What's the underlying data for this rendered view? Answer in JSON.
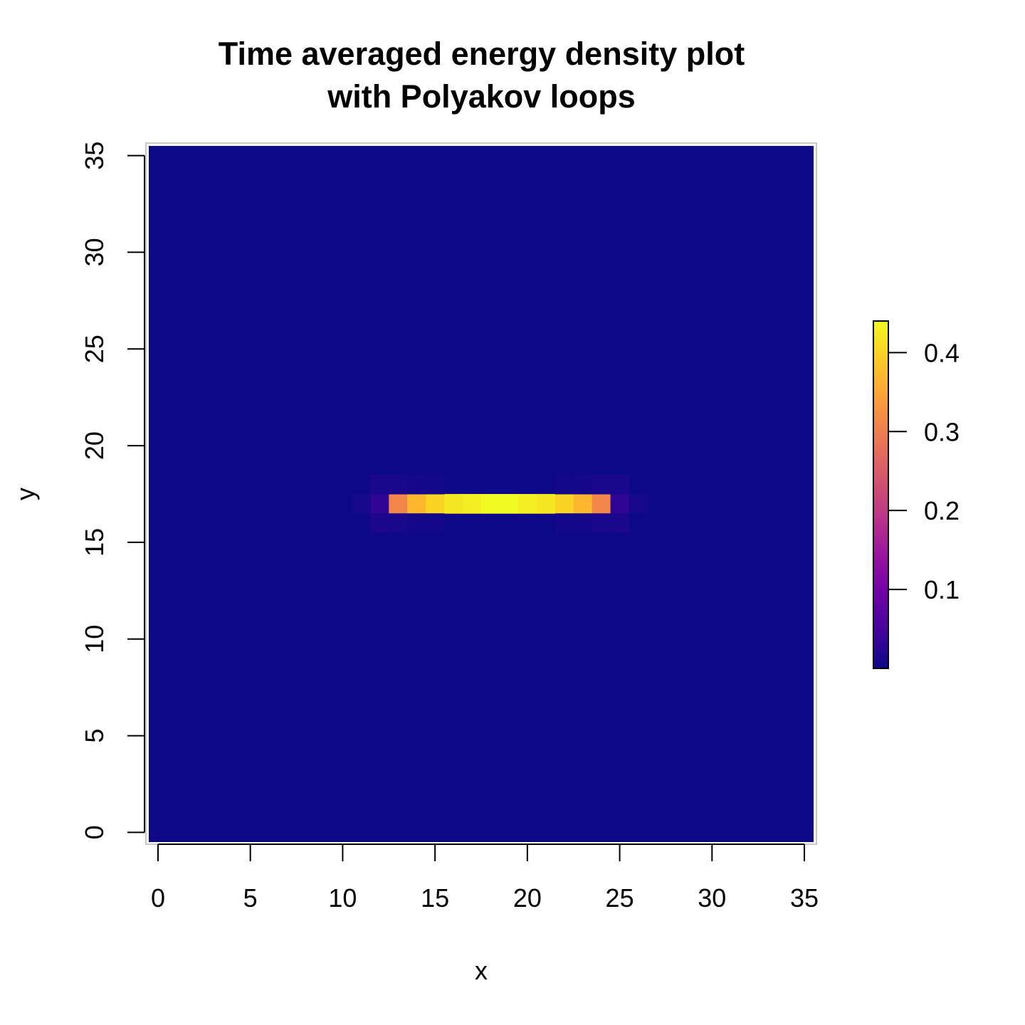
{
  "chart_data": {
    "type": "heatmap",
    "title_line1": "Time averaged energy density plot",
    "title_line2": "with Polyakov loops",
    "xlabel": "x",
    "ylabel": "y",
    "xlim": [
      -0.5,
      35.5
    ],
    "ylim": [
      -0.5,
      35.5
    ],
    "x_ticks": [
      0,
      5,
      10,
      15,
      20,
      25,
      30,
      35
    ],
    "y_ticks": [
      0,
      5,
      10,
      15,
      20,
      25,
      30,
      35
    ],
    "grid_size": 36,
    "background_value": 0.0,
    "colorbar": {
      "ticks": [
        0.1,
        0.2,
        0.3,
        0.4
      ],
      "min": 0.0,
      "max": 0.44,
      "palette": [
        "#0d0887",
        "#46039f",
        "#7201a8",
        "#9c179e",
        "#bd3786",
        "#d8576b",
        "#ed7953",
        "#fb9f3a",
        "#fdca26",
        "#f0f921"
      ]
    },
    "cells": [
      {
        "x": 12,
        "y": 17,
        "value": 0.03
      },
      {
        "x": 13,
        "y": 17,
        "value": 0.31
      },
      {
        "x": 14,
        "y": 17,
        "value": 0.37
      },
      {
        "x": 15,
        "y": 17,
        "value": 0.4
      },
      {
        "x": 16,
        "y": 17,
        "value": 0.42
      },
      {
        "x": 17,
        "y": 17,
        "value": 0.43
      },
      {
        "x": 18,
        "y": 17,
        "value": 0.44
      },
      {
        "x": 19,
        "y": 17,
        "value": 0.44
      },
      {
        "x": 20,
        "y": 17,
        "value": 0.43
      },
      {
        "x": 21,
        "y": 17,
        "value": 0.42
      },
      {
        "x": 22,
        "y": 17,
        "value": 0.4
      },
      {
        "x": 23,
        "y": 17,
        "value": 0.37
      },
      {
        "x": 24,
        "y": 17,
        "value": 0.31
      },
      {
        "x": 25,
        "y": 17,
        "value": 0.03
      },
      {
        "x": 11,
        "y": 17,
        "value": 0.008
      },
      {
        "x": 26,
        "y": 17,
        "value": 0.008
      },
      {
        "x": 12,
        "y": 18,
        "value": 0.012
      },
      {
        "x": 13,
        "y": 18,
        "value": 0.01
      },
      {
        "x": 14,
        "y": 18,
        "value": 0.006
      },
      {
        "x": 23,
        "y": 18,
        "value": 0.006
      },
      {
        "x": 24,
        "y": 18,
        "value": 0.01
      },
      {
        "x": 25,
        "y": 18,
        "value": 0.012
      },
      {
        "x": 12,
        "y": 16,
        "value": 0.012
      },
      {
        "x": 13,
        "y": 16,
        "value": 0.01
      },
      {
        "x": 14,
        "y": 16,
        "value": 0.006
      },
      {
        "x": 23,
        "y": 16,
        "value": 0.006
      },
      {
        "x": 24,
        "y": 16,
        "value": 0.01
      },
      {
        "x": 25,
        "y": 16,
        "value": 0.012
      },
      {
        "x": 15,
        "y": 18,
        "value": 0.004
      },
      {
        "x": 22,
        "y": 18,
        "value": 0.004
      },
      {
        "x": 15,
        "y": 16,
        "value": 0.004
      },
      {
        "x": 22,
        "y": 16,
        "value": 0.004
      }
    ]
  }
}
